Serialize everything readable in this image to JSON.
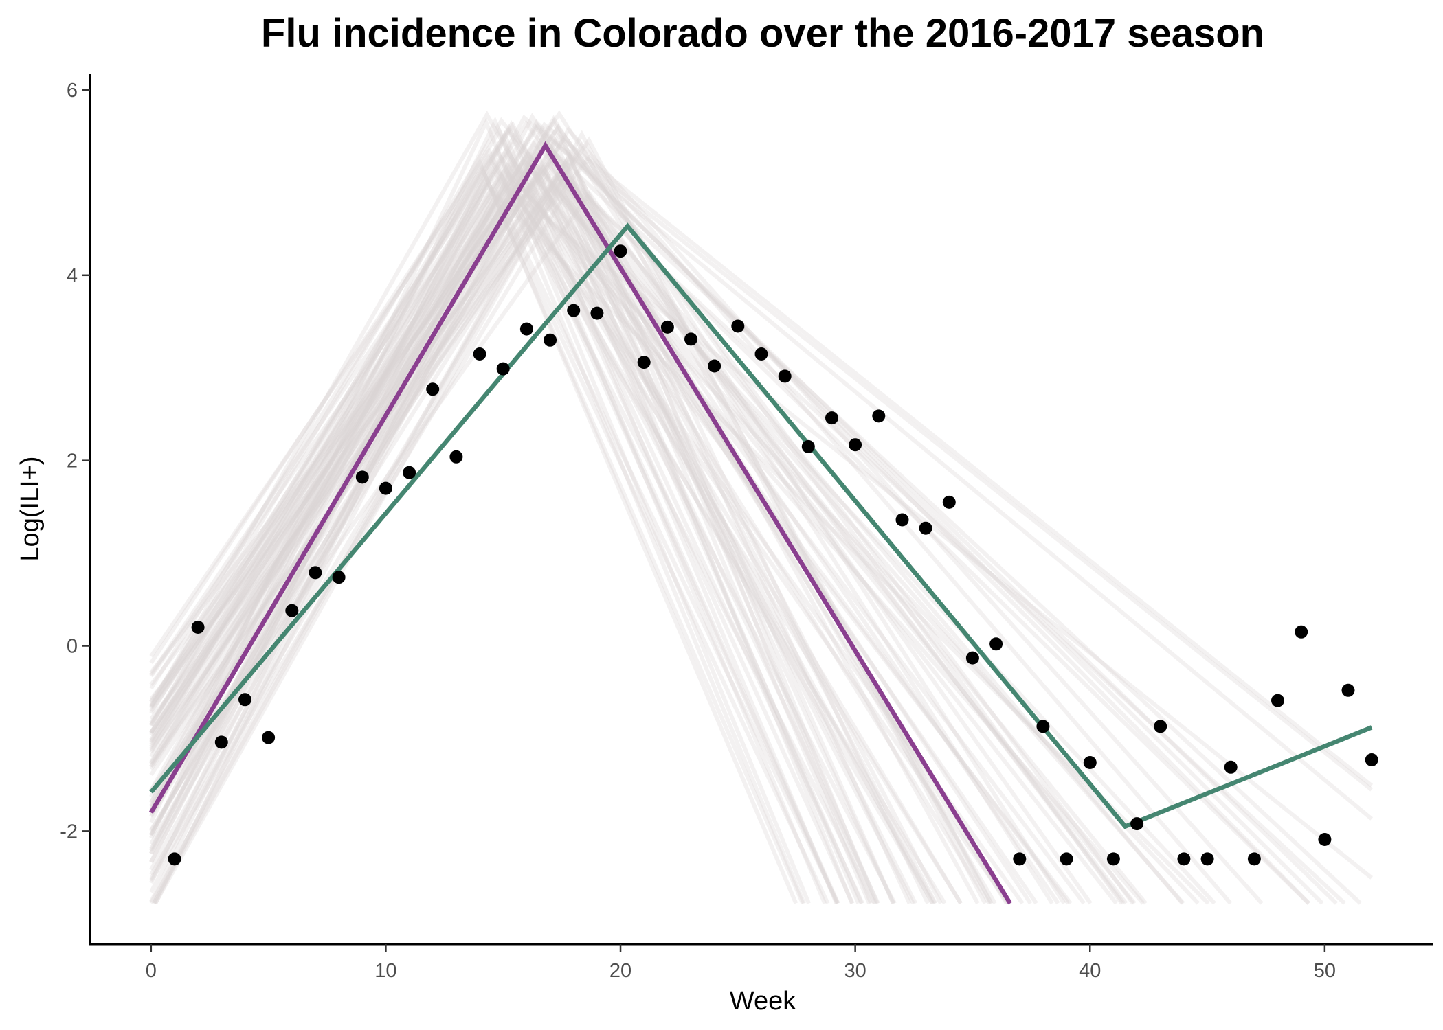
{
  "chart_data": {
    "type": "line",
    "title": "Flu incidence in Colorado over the 2016-2017 season",
    "xlabel": "Week",
    "ylabel": "Log(ILI+)",
    "xlim": [
      -2.6,
      54.6
    ],
    "ylim": [
      -3.22,
      6.17
    ],
    "x_ticks": [
      0,
      10,
      20,
      30,
      40,
      50
    ],
    "y_ticks": [
      -2,
      0,
      2,
      4,
      6
    ],
    "grid": false,
    "legend": "none",
    "colors": {
      "points": "#000000",
      "purple_line": "#8a3f8f",
      "green_line": "#458671",
      "ensemble": "#d9d2d2"
    },
    "observed": {
      "x": [
        1,
        2,
        3,
        4,
        5,
        6,
        7,
        8,
        9,
        10,
        11,
        12,
        13,
        14,
        15,
        16,
        17,
        18,
        19,
        20,
        21,
        22,
        23,
        24,
        25,
        26,
        27,
        28,
        29,
        30,
        31,
        32,
        33,
        34,
        35,
        36,
        37,
        38,
        39,
        40,
        41,
        42,
        43,
        44,
        45,
        46,
        47,
        48,
        49,
        50,
        51,
        52
      ],
      "y": [
        -2.3,
        0.2,
        -1.04,
        -0.58,
        -0.99,
        0.38,
        0.79,
        0.74,
        1.82,
        1.7,
        1.87,
        2.77,
        2.04,
        3.15,
        2.99,
        3.42,
        3.3,
        3.62,
        3.59,
        4.26,
        3.06,
        3.44,
        3.31,
        3.02,
        3.45,
        3.15,
        2.91,
        2.15,
        2.46,
        2.17,
        2.48,
        1.36,
        1.27,
        1.55,
        -0.13,
        0.02,
        -2.3,
        -0.87,
        -2.3,
        -1.26,
        -2.3,
        -1.92,
        -0.87,
        -2.3,
        -2.3,
        -1.31,
        -2.3,
        -0.59,
        0.15,
        -2.09,
        -0.48,
        -1.23
      ]
    },
    "series": [
      {
        "x": [
          0,
          16.8,
          36.6
        ],
        "y": [
          -1.8,
          5.4,
          -2.78
        ]
      },
      {
        "x": [
          0,
          20.3,
          41.5,
          52
        ],
        "y": [
          -1.58,
          4.53,
          -1.95,
          -0.88
        ]
      }
    ],
    "ensemble_count": 80,
    "ensemble_ymin": -2.78
  }
}
